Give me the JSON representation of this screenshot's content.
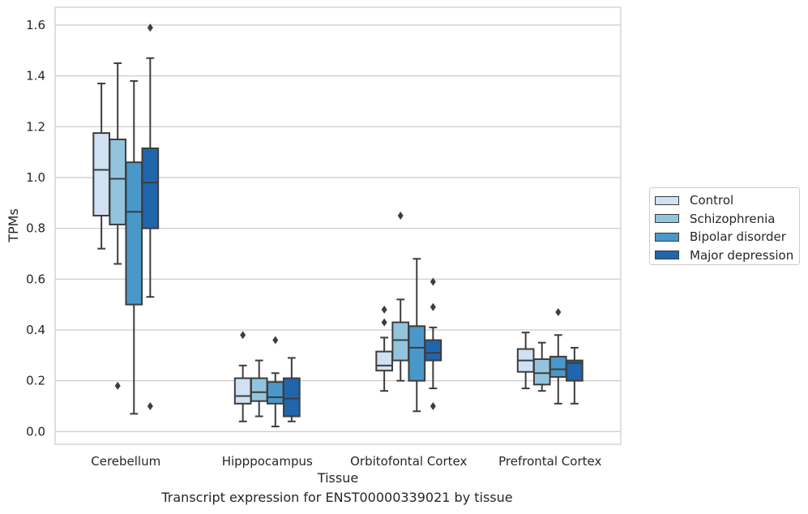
{
  "caption": "Transcript expression for ENST00000339021 by tissue",
  "chart_data": {
    "type": "boxplot",
    "xlabel": "Tissue",
    "ylabel": "TPMs",
    "ylim": [
      -0.05,
      1.67
    ],
    "yticks": [
      "0.0",
      "0.2",
      "0.4",
      "0.6",
      "0.8",
      "1.0",
      "1.2",
      "1.4",
      "1.6"
    ],
    "grid": true,
    "legend_position": "right",
    "categories": [
      "Cerebellum",
      "Hipppocampus",
      "Orbitofontal Cortex",
      "Prefrontal Cortex"
    ],
    "series": [
      {
        "name": "Control",
        "color": "#cfe1f2",
        "boxes": [
          {
            "whisker_low": 0.72,
            "q1": 0.85,
            "median": 1.03,
            "q3": 1.175,
            "whisker_high": 1.37,
            "outliers": []
          },
          {
            "whisker_low": 0.04,
            "q1": 0.11,
            "median": 0.14,
            "q3": 0.21,
            "whisker_high": 0.26,
            "outliers": [
              0.38
            ]
          },
          {
            "whisker_low": 0.16,
            "q1": 0.24,
            "median": 0.26,
            "q3": 0.315,
            "whisker_high": 0.37,
            "outliers": [
              0.43,
              0.48
            ]
          },
          {
            "whisker_low": 0.17,
            "q1": 0.235,
            "median": 0.28,
            "q3": 0.325,
            "whisker_high": 0.39,
            "outliers": []
          }
        ]
      },
      {
        "name": "Schizophrenia",
        "color": "#93c4de",
        "boxes": [
          {
            "whisker_low": 0.66,
            "q1": 0.815,
            "median": 0.995,
            "q3": 1.15,
            "whisker_high": 1.45,
            "outliers": [
              0.18
            ]
          },
          {
            "whisker_low": 0.06,
            "q1": 0.12,
            "median": 0.155,
            "q3": 0.21,
            "whisker_high": 0.28,
            "outliers": []
          },
          {
            "whisker_low": 0.2,
            "q1": 0.28,
            "median": 0.36,
            "q3": 0.43,
            "whisker_high": 0.52,
            "outliers": [
              0.85
            ]
          },
          {
            "whisker_low": 0.16,
            "q1": 0.185,
            "median": 0.23,
            "q3": 0.285,
            "whisker_high": 0.35,
            "outliers": []
          }
        ]
      },
      {
        "name": "Bipolar disorder",
        "color": "#4a98c9",
        "boxes": [
          {
            "whisker_low": 0.07,
            "q1": 0.5,
            "median": 0.865,
            "q3": 1.06,
            "whisker_high": 1.38,
            "outliers": []
          },
          {
            "whisker_low": 0.02,
            "q1": 0.11,
            "median": 0.135,
            "q3": 0.195,
            "whisker_high": 0.23,
            "outliers": [
              0.36
            ]
          },
          {
            "whisker_low": 0.08,
            "q1": 0.2,
            "median": 0.33,
            "q3": 0.415,
            "whisker_high": 0.68,
            "outliers": []
          },
          {
            "whisker_low": 0.11,
            "q1": 0.215,
            "median": 0.245,
            "q3": 0.295,
            "whisker_high": 0.38,
            "outliers": [
              0.47
            ]
          }
        ]
      },
      {
        "name": "Major depression",
        "color": "#2166ac",
        "boxes": [
          {
            "whisker_low": 0.53,
            "q1": 0.8,
            "median": 0.98,
            "q3": 1.115,
            "whisker_high": 1.47,
            "outliers": [
              0.1,
              1.59
            ]
          },
          {
            "whisker_low": 0.04,
            "q1": 0.06,
            "median": 0.13,
            "q3": 0.21,
            "whisker_high": 0.29,
            "outliers": []
          },
          {
            "whisker_low": 0.17,
            "q1": 0.28,
            "median": 0.31,
            "q3": 0.36,
            "whisker_high": 0.41,
            "outliers": [
              0.1,
              0.49,
              0.59
            ]
          },
          {
            "whisker_low": 0.11,
            "q1": 0.2,
            "median": 0.27,
            "q3": 0.28,
            "whisker_high": 0.33,
            "outliers": []
          }
        ]
      }
    ]
  }
}
